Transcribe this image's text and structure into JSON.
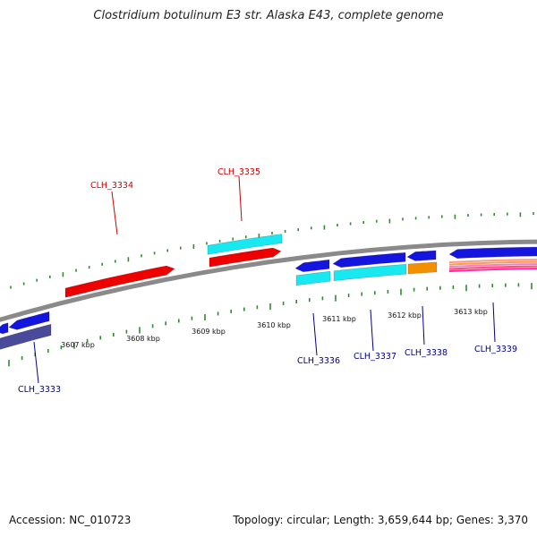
{
  "header": {
    "title": "Clostridium botulinum E3 str. Alaska E43, complete genome"
  },
  "footer": {
    "accession": "Accession: NC_010723",
    "summary": "Topology: circular; Length: 3,659,644 bp; Genes: 3,370"
  },
  "colors": {
    "backbone": "#8a8a8a",
    "tick": "#2e8b2e",
    "forward_label": "#cc0000",
    "reverse_label": "#00008b",
    "red": "#ee0000",
    "blue": "#1515e0",
    "cyan": "#18e8f0",
    "orange": "#f29000",
    "navy": "#4a4a9a"
  },
  "scale": {
    "ticks": [
      {
        "label": "3607 kbp"
      },
      {
        "label": "3608 kbp"
      },
      {
        "label": "3609 kbp"
      },
      {
        "label": "3610 kbp"
      },
      {
        "label": "3611 kbp"
      },
      {
        "label": "3612 kbp"
      },
      {
        "label": "3613 kbp"
      }
    ]
  },
  "genes": {
    "forward": [
      {
        "name": "CLH_3334"
      },
      {
        "name": "CLH_3335"
      }
    ],
    "reverse": [
      {
        "name": "CLH_3333"
      },
      {
        "name": "CLH_3336"
      },
      {
        "name": "CLH_3337"
      },
      {
        "name": "CLH_3338"
      },
      {
        "name": "CLH_3339"
      }
    ]
  }
}
